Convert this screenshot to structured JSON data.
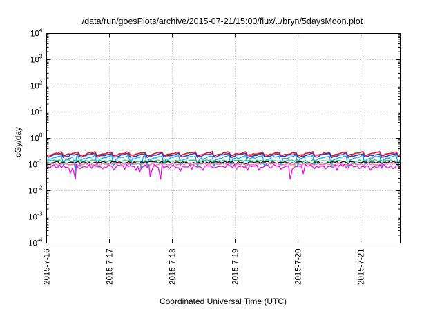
{
  "chart_data": {
    "type": "line",
    "title": "/data/run/goesPlots/archive/2015-07-21/15:00/flux/../bryn/5daysMoon.plot",
    "xlabel": "Coordinated Universal Time (UTC)",
    "ylabel": "cGy/day",
    "yscale": "log",
    "ylim": [
      0.0001,
      10000
    ],
    "xlim": [
      "2015-07-16T00:00",
      "2015-07-21T15:00"
    ],
    "grid": true,
    "legend": "none",
    "x_ticks": [
      "2015-7-16",
      "2015-7-17",
      "2015-7-18",
      "2015-7-19",
      "2015-7-20",
      "2015-7-21"
    ],
    "y_ticks": [
      {
        "base": "10",
        "exp": "-4",
        "value": 0.0001
      },
      {
        "base": "10",
        "exp": "-3",
        "value": 0.001
      },
      {
        "base": "10",
        "exp": "-2",
        "value": 0.01
      },
      {
        "base": "10",
        "exp": "-1",
        "value": 0.1
      },
      {
        "base": "10",
        "exp": "0",
        "value": 1
      },
      {
        "base": "10",
        "exp": "1",
        "value": 10
      },
      {
        "base": "10",
        "exp": "2",
        "value": 100
      },
      {
        "base": "10",
        "exp": "3",
        "value": 1000
      },
      {
        "base": "10",
        "exp": "4",
        "value": 10000
      }
    ],
    "series": [
      {
        "color": "#e8141e",
        "baseline": 0.25,
        "pattern": "sawtooth",
        "dips": []
      },
      {
        "color": "#2a3fd6",
        "baseline": 0.22,
        "pattern": "sawtooth",
        "dips": []
      },
      {
        "color": "#1aa6e6",
        "baseline": 0.17,
        "pattern": "spiky",
        "dips": [
          {
            "date": "2015-07-16T11:00",
            "value": 0.06
          },
          {
            "date": "2015-07-17T12:00",
            "value": 0.07
          }
        ]
      },
      {
        "color": "#2fc08a",
        "baseline": 0.14,
        "pattern": "flat",
        "dips": []
      },
      {
        "color": "#111111",
        "baseline": 0.12,
        "pattern": "flat",
        "dips": []
      },
      {
        "color": "#ff70b0",
        "baseline": 0.105,
        "pattern": "flat",
        "dips": []
      },
      {
        "color": "#e60fe0",
        "baseline": 0.09,
        "pattern": "noisy",
        "dips": [
          {
            "date": "2015-07-16T09:00",
            "value": 0.045
          },
          {
            "date": "2015-07-16T11:00",
            "value": 0.028
          },
          {
            "date": "2015-07-17T11:30",
            "value": 0.05
          },
          {
            "date": "2015-07-17T15:30",
            "value": 0.035
          },
          {
            "date": "2015-07-17T19:30",
            "value": 0.028
          },
          {
            "date": "2015-07-18T03:00",
            "value": 0.055
          },
          {
            "date": "2015-07-19T21:00",
            "value": 0.028
          },
          {
            "date": "2015-07-20T02:00",
            "value": 0.045
          }
        ]
      }
    ]
  }
}
